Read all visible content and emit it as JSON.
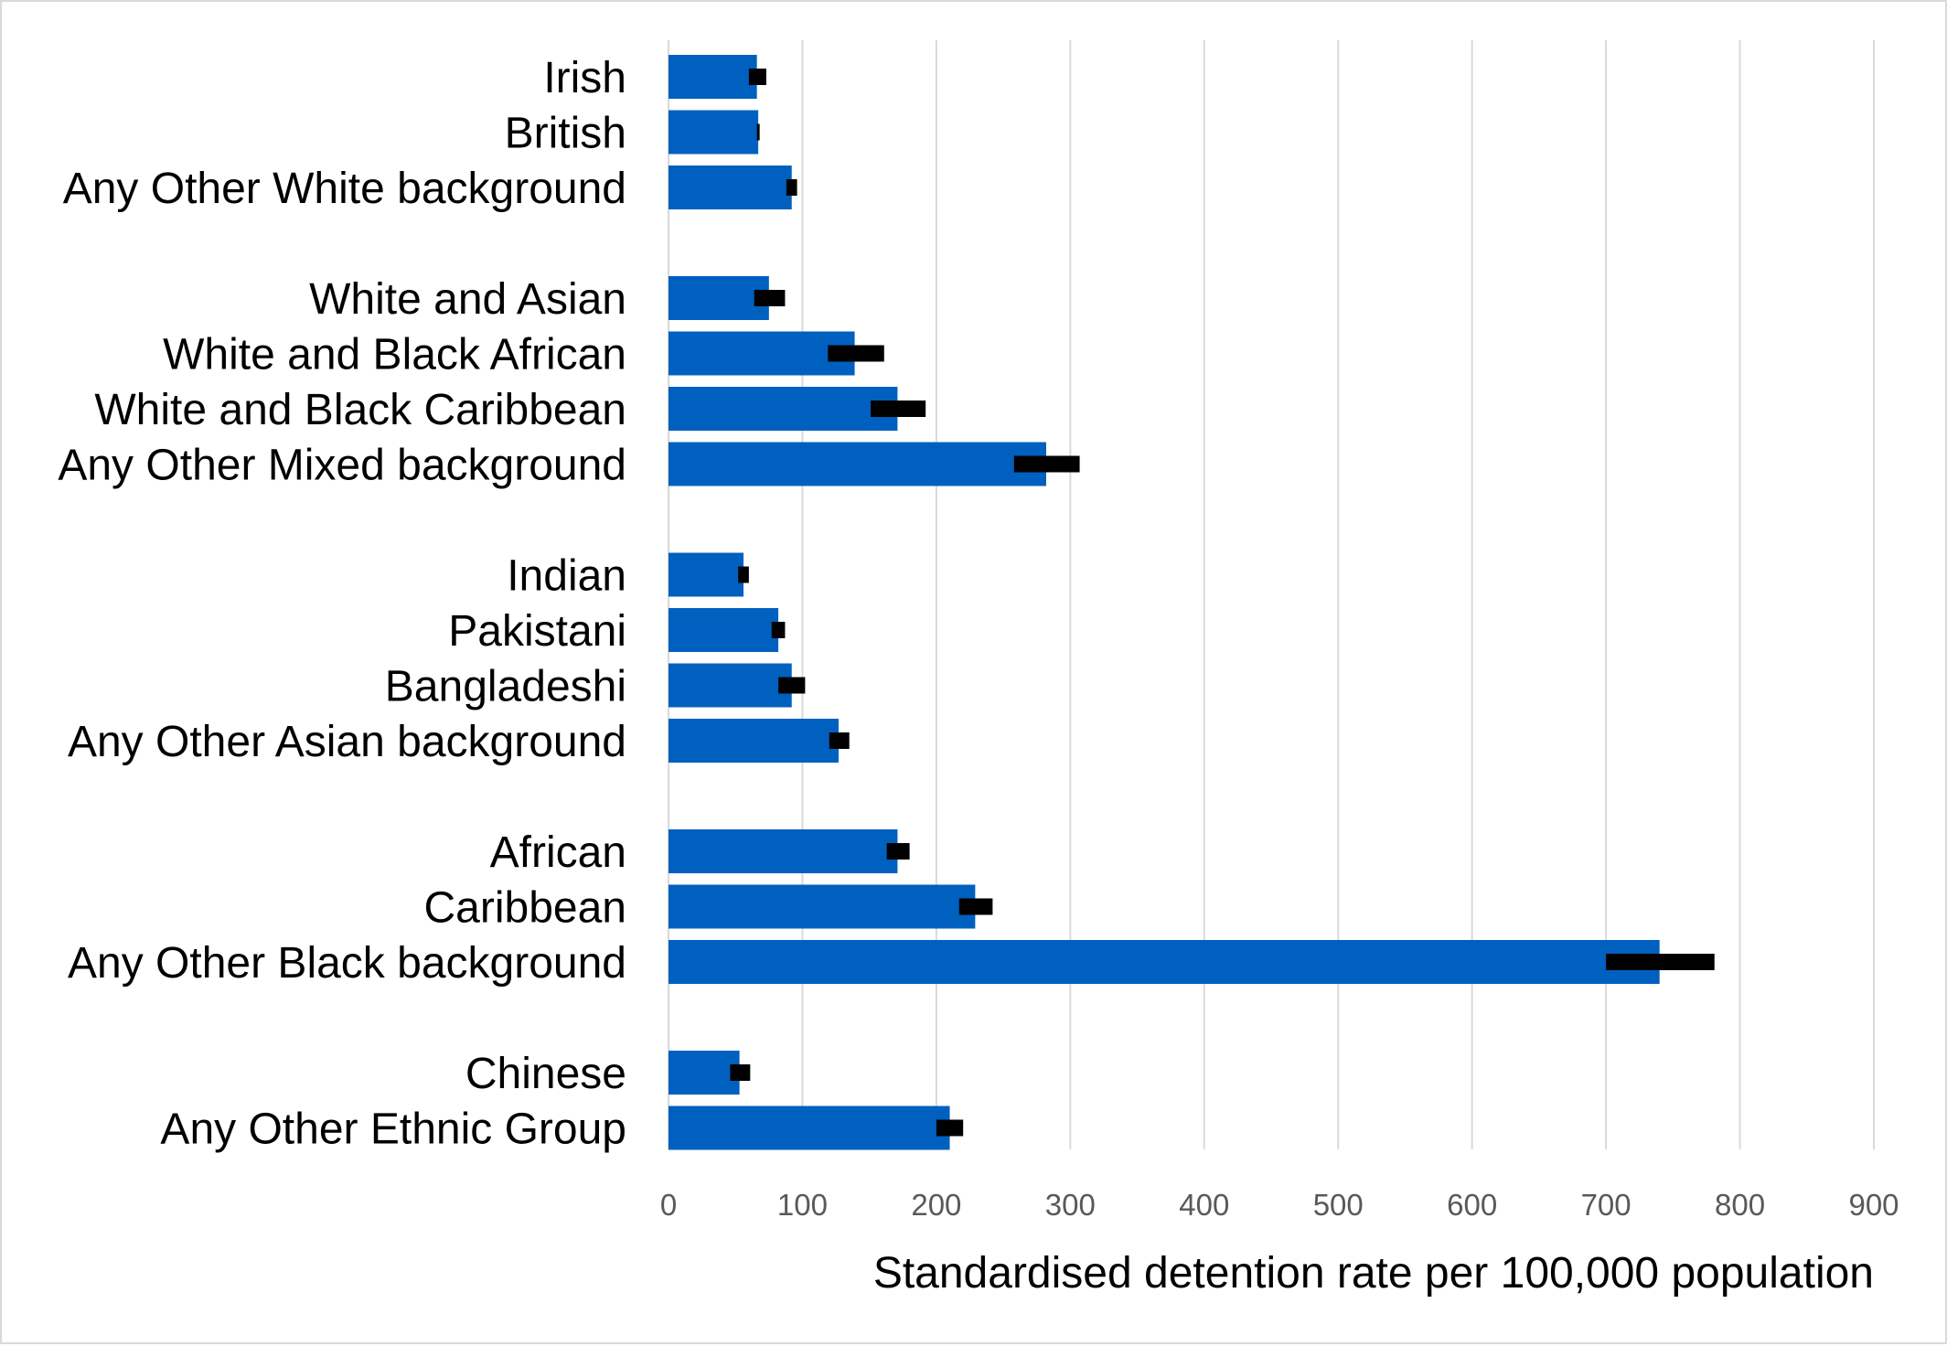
{
  "chart_data": {
    "type": "bar",
    "orientation": "horizontal",
    "title": "",
    "xlabel": "Standardised detention rate per 100,000 population",
    "ylabel": "",
    "xlim": [
      0,
      900
    ],
    "x_ticks": [
      0,
      100,
      200,
      300,
      400,
      500,
      600,
      700,
      800,
      900
    ],
    "grid": "vertical",
    "legend": "none",
    "bar_color": "#0060bf",
    "error_color": "#000000",
    "groups": [
      {
        "categories": [
          {
            "label": "Irish",
            "value": 66,
            "ci": [
              60,
              73
            ]
          },
          {
            "label": "British",
            "value": 67,
            "ci": [
              66,
              68
            ]
          },
          {
            "label": "Any Other White background",
            "value": 92,
            "ci": [
              88,
              96
            ]
          }
        ]
      },
      {
        "categories": [
          {
            "label": "White and Asian",
            "value": 75,
            "ci": [
              64,
              87
            ]
          },
          {
            "label": "White and Black African",
            "value": 139,
            "ci": [
              119,
              161
            ]
          },
          {
            "label": "White and Black Caribbean",
            "value": 171,
            "ci": [
              151,
              192
            ]
          },
          {
            "label": "Any Other Mixed background",
            "value": 282,
            "ci": [
              258,
              307
            ]
          }
        ]
      },
      {
        "categories": [
          {
            "label": "Indian",
            "value": 56,
            "ci": [
              52,
              60
            ]
          },
          {
            "label": "Pakistani",
            "value": 82,
            "ci": [
              77,
              87
            ]
          },
          {
            "label": "Bangladeshi",
            "value": 92,
            "ci": [
              82,
              102
            ]
          },
          {
            "label": "Any Other Asian background",
            "value": 127,
            "ci": [
              120,
              135
            ]
          }
        ]
      },
      {
        "categories": [
          {
            "label": "African",
            "value": 171,
            "ci": [
              163,
              180
            ]
          },
          {
            "label": "Caribbean",
            "value": 229,
            "ci": [
              217,
              242
            ]
          },
          {
            "label": "Any Other Black background",
            "value": 740,
            "ci": [
              700,
              781
            ]
          }
        ]
      },
      {
        "categories": [
          {
            "label": "Chinese",
            "value": 53,
            "ci": [
              46,
              61
            ]
          },
          {
            "label": "Any Other Ethnic Group",
            "value": 210,
            "ci": [
              200,
              220
            ]
          }
        ]
      }
    ]
  }
}
